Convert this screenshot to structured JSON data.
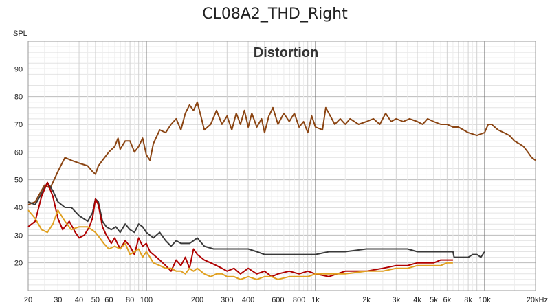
{
  "chart_data": {
    "type": "line",
    "title": "CL08A2_THD_Right",
    "subtitle": "Distortion",
    "ylabel": "SPL",
    "xunit": "Hz",
    "xscale": "log",
    "xlim": [
      20,
      20000
    ],
    "ylim": [
      10,
      100
    ],
    "grid": true,
    "x_tick_labels": [
      "20",
      "30",
      "40",
      "50",
      "60",
      "80",
      "100",
      "200",
      "300",
      "400",
      "600",
      "800",
      "1k",
      "2k",
      "3k",
      "4k",
      "5k",
      "6k",
      "8k",
      "10k",
      "20kHz"
    ],
    "y_tick_labels": [
      "20",
      "30",
      "40",
      "50",
      "60",
      "70",
      "80",
      "90"
    ],
    "series": [
      {
        "color": "#8B4513",
        "points": [
          [
            20,
            41
          ],
          [
            22,
            42
          ],
          [
            25,
            48
          ],
          [
            27,
            47
          ],
          [
            30,
            53
          ],
          [
            33,
            58
          ],
          [
            36,
            57
          ],
          [
            40,
            56
          ],
          [
            45,
            55
          ],
          [
            48,
            53
          ],
          [
            50,
            52
          ],
          [
            52,
            55
          ],
          [
            55,
            57
          ],
          [
            60,
            60
          ],
          [
            65,
            62
          ],
          [
            68,
            65
          ],
          [
            70,
            61
          ],
          [
            75,
            64
          ],
          [
            80,
            64
          ],
          [
            85,
            60
          ],
          [
            90,
            62
          ],
          [
            95,
            65
          ],
          [
            100,
            59
          ],
          [
            105,
            57
          ],
          [
            110,
            63
          ],
          [
            120,
            68
          ],
          [
            130,
            67
          ],
          [
            140,
            70
          ],
          [
            150,
            72
          ],
          [
            160,
            68
          ],
          [
            170,
            74
          ],
          [
            180,
            77
          ],
          [
            190,
            75
          ],
          [
            200,
            78
          ],
          [
            210,
            73
          ],
          [
            220,
            68
          ],
          [
            240,
            70
          ],
          [
            260,
            75
          ],
          [
            280,
            70
          ],
          [
            300,
            73
          ],
          [
            320,
            68
          ],
          [
            340,
            74
          ],
          [
            360,
            70
          ],
          [
            380,
            75
          ],
          [
            400,
            69
          ],
          [
            420,
            74
          ],
          [
            450,
            69
          ],
          [
            480,
            72
          ],
          [
            500,
            67
          ],
          [
            530,
            73
          ],
          [
            560,
            76
          ],
          [
            600,
            70
          ],
          [
            650,
            74
          ],
          [
            700,
            71
          ],
          [
            750,
            74
          ],
          [
            800,
            69
          ],
          [
            850,
            71
          ],
          [
            900,
            67
          ],
          [
            950,
            73
          ],
          [
            1000,
            69
          ],
          [
            1100,
            68
          ],
          [
            1150,
            76
          ],
          [
            1200,
            74
          ],
          [
            1300,
            70
          ],
          [
            1400,
            72
          ],
          [
            1500,
            70
          ],
          [
            1600,
            72
          ],
          [
            1800,
            70
          ],
          [
            2000,
            71
          ],
          [
            2200,
            72
          ],
          [
            2400,
            70
          ],
          [
            2600,
            74
          ],
          [
            2800,
            71
          ],
          [
            3000,
            72
          ],
          [
            3300,
            71
          ],
          [
            3600,
            72
          ],
          [
            4000,
            71
          ],
          [
            4300,
            70
          ],
          [
            4600,
            72
          ],
          [
            5000,
            71
          ],
          [
            5500,
            70
          ],
          [
            6000,
            70
          ],
          [
            6500,
            69
          ],
          [
            7000,
            69
          ],
          [
            8000,
            67
          ],
          [
            9000,
            66
          ],
          [
            10000,
            67
          ],
          [
            10500,
            70
          ],
          [
            11000,
            70
          ],
          [
            12000,
            68
          ],
          [
            13000,
            67
          ],
          [
            14000,
            66
          ],
          [
            15000,
            64
          ],
          [
            16000,
            63
          ],
          [
            17000,
            62
          ],
          [
            18000,
            60
          ],
          [
            19000,
            58
          ],
          [
            20000,
            57
          ]
        ]
      },
      {
        "color": "#3A3A3A",
        "points": [
          [
            20,
            42
          ],
          [
            22,
            41
          ],
          [
            24,
            45
          ],
          [
            26,
            49
          ],
          [
            28,
            46
          ],
          [
            30,
            42
          ],
          [
            33,
            40
          ],
          [
            36,
            40
          ],
          [
            40,
            37
          ],
          [
            45,
            35
          ],
          [
            48,
            38
          ],
          [
            50,
            43
          ],
          [
            52,
            42
          ],
          [
            55,
            35
          ],
          [
            58,
            33
          ],
          [
            62,
            32
          ],
          [
            66,
            33
          ],
          [
            70,
            31
          ],
          [
            75,
            34
          ],
          [
            80,
            32
          ],
          [
            85,
            31
          ],
          [
            90,
            34
          ],
          [
            95,
            33
          ],
          [
            100,
            31
          ],
          [
            110,
            29
          ],
          [
            120,
            31
          ],
          [
            130,
            28
          ],
          [
            140,
            26
          ],
          [
            150,
            28
          ],
          [
            160,
            27
          ],
          [
            170,
            27
          ],
          [
            180,
            27
          ],
          [
            190,
            28
          ],
          [
            200,
            29
          ],
          [
            220,
            26
          ],
          [
            250,
            25
          ],
          [
            300,
            25
          ],
          [
            350,
            25
          ],
          [
            400,
            25
          ],
          [
            450,
            24
          ],
          [
            500,
            23
          ],
          [
            600,
            23
          ],
          [
            700,
            23
          ],
          [
            800,
            23
          ],
          [
            1000,
            23
          ],
          [
            1200,
            24
          ],
          [
            1500,
            24
          ],
          [
            2000,
            25
          ],
          [
            2500,
            25
          ],
          [
            3000,
            25
          ],
          [
            3500,
            25
          ],
          [
            4000,
            24
          ],
          [
            5000,
            24
          ],
          [
            5500,
            24
          ],
          [
            6000,
            24
          ],
          [
            6500,
            24
          ],
          [
            6600,
            22
          ],
          [
            7000,
            22
          ],
          [
            8000,
            22
          ],
          [
            8500,
            23
          ],
          [
            9000,
            23
          ],
          [
            9500,
            22
          ],
          [
            10000,
            24
          ]
        ]
      },
      {
        "color": "#B00000",
        "points": [
          [
            20,
            33
          ],
          [
            22,
            35
          ],
          [
            24,
            44
          ],
          [
            26,
            49
          ],
          [
            28,
            44
          ],
          [
            30,
            36
          ],
          [
            32,
            32
          ],
          [
            35,
            35
          ],
          [
            38,
            31
          ],
          [
            40,
            29
          ],
          [
            43,
            30
          ],
          [
            46,
            33
          ],
          [
            48,
            36
          ],
          [
            50,
            43
          ],
          [
            52,
            41
          ],
          [
            55,
            33
          ],
          [
            58,
            30
          ],
          [
            62,
            27
          ],
          [
            65,
            29
          ],
          [
            70,
            25
          ],
          [
            75,
            28
          ],
          [
            80,
            26
          ],
          [
            85,
            23
          ],
          [
            90,
            29
          ],
          [
            95,
            26
          ],
          [
            100,
            27
          ],
          [
            105,
            24
          ],
          [
            110,
            23
          ],
          [
            120,
            21
          ],
          [
            130,
            19
          ],
          [
            140,
            17
          ],
          [
            150,
            21
          ],
          [
            160,
            19
          ],
          [
            170,
            22
          ],
          [
            180,
            18
          ],
          [
            190,
            25
          ],
          [
            200,
            23
          ],
          [
            220,
            21
          ],
          [
            240,
            20
          ],
          [
            260,
            19
          ],
          [
            280,
            18
          ],
          [
            300,
            17
          ],
          [
            330,
            18
          ],
          [
            360,
            16
          ],
          [
            400,
            18
          ],
          [
            450,
            16
          ],
          [
            500,
            17
          ],
          [
            550,
            15
          ],
          [
            600,
            16
          ],
          [
            700,
            17
          ],
          [
            800,
            16
          ],
          [
            900,
            17
          ],
          [
            1000,
            16
          ],
          [
            1200,
            15
          ],
          [
            1500,
            17
          ],
          [
            2000,
            17
          ],
          [
            2500,
            18
          ],
          [
            3000,
            19
          ],
          [
            3500,
            19
          ],
          [
            4000,
            20
          ],
          [
            4500,
            20
          ],
          [
            5000,
            20
          ],
          [
            5500,
            21
          ],
          [
            6000,
            21
          ],
          [
            6500,
            21
          ]
        ]
      },
      {
        "color": "#E0A020",
        "points": [
          [
            20,
            39
          ],
          [
            22,
            36
          ],
          [
            24,
            32
          ],
          [
            26,
            31
          ],
          [
            28,
            34
          ],
          [
            30,
            39
          ],
          [
            33,
            35
          ],
          [
            36,
            32
          ],
          [
            40,
            33
          ],
          [
            45,
            33
          ],
          [
            50,
            31
          ],
          [
            53,
            29
          ],
          [
            56,
            27
          ],
          [
            60,
            25
          ],
          [
            65,
            26
          ],
          [
            70,
            25
          ],
          [
            75,
            27
          ],
          [
            80,
            23
          ],
          [
            85,
            24
          ],
          [
            90,
            25
          ],
          [
            95,
            22
          ],
          [
            100,
            24
          ],
          [
            105,
            22
          ],
          [
            110,
            20
          ],
          [
            120,
            19
          ],
          [
            130,
            18
          ],
          [
            140,
            18
          ],
          [
            150,
            17
          ],
          [
            160,
            17
          ],
          [
            170,
            16
          ],
          [
            180,
            18
          ],
          [
            190,
            17
          ],
          [
            200,
            18
          ],
          [
            220,
            16
          ],
          [
            240,
            15
          ],
          [
            260,
            16
          ],
          [
            280,
            16
          ],
          [
            300,
            15
          ],
          [
            330,
            15
          ],
          [
            360,
            14
          ],
          [
            400,
            15
          ],
          [
            450,
            14
          ],
          [
            500,
            15
          ],
          [
            550,
            15
          ],
          [
            600,
            14
          ],
          [
            700,
            15
          ],
          [
            800,
            15
          ],
          [
            900,
            15
          ],
          [
            1000,
            16
          ],
          [
            1200,
            16
          ],
          [
            1500,
            16
          ],
          [
            2000,
            17
          ],
          [
            2500,
            17
          ],
          [
            3000,
            18
          ],
          [
            3500,
            18
          ],
          [
            4000,
            19
          ],
          [
            4500,
            19
          ],
          [
            5000,
            19
          ],
          [
            5500,
            19
          ],
          [
            6000,
            20
          ],
          [
            6500,
            20
          ]
        ]
      }
    ]
  }
}
